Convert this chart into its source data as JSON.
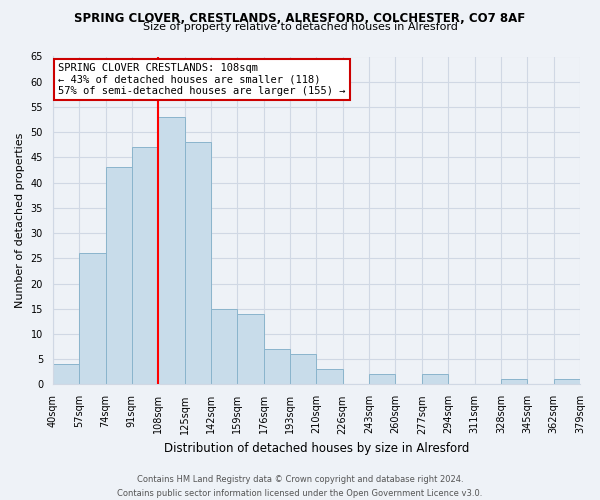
{
  "title": "SPRING CLOVER, CRESTLANDS, ALRESFORD, COLCHESTER, CO7 8AF",
  "subtitle": "Size of property relative to detached houses in Alresford",
  "xlabel": "Distribution of detached houses by size in Alresford",
  "ylabel": "Number of detached properties",
  "bin_labels": [
    "40sqm",
    "57sqm",
    "74sqm",
    "91sqm",
    "108sqm",
    "125sqm",
    "142sqm",
    "159sqm",
    "176sqm",
    "193sqm",
    "210sqm",
    "226sqm",
    "243sqm",
    "260sqm",
    "277sqm",
    "294sqm",
    "311sqm",
    "328sqm",
    "345sqm",
    "362sqm",
    "379sqm"
  ],
  "bar_heights": [
    4,
    26,
    43,
    47,
    53,
    48,
    15,
    14,
    7,
    6,
    3,
    0,
    2,
    0,
    2,
    0,
    0,
    1,
    0,
    1
  ],
  "bar_color": "#c8dcea",
  "bar_edge_color": "#8ab4cc",
  "red_line_x": 4,
  "ylim": [
    0,
    65
  ],
  "yticks": [
    0,
    5,
    10,
    15,
    20,
    25,
    30,
    35,
    40,
    45,
    50,
    55,
    60,
    65
  ],
  "annotation_title": "SPRING CLOVER CRESTLANDS: 108sqm",
  "annotation_line1": "← 43% of detached houses are smaller (118)",
  "annotation_line2": "57% of semi-detached houses are larger (155) →",
  "annotation_box_facecolor": "#ffffff",
  "annotation_box_edgecolor": "#cc0000",
  "footer_line1": "Contains HM Land Registry data © Crown copyright and database right 2024.",
  "footer_line2": "Contains public sector information licensed under the Open Government Licence v3.0.",
  "background_color": "#eef2f7",
  "grid_color": "#d0d8e4",
  "title_fontsize": 8.5,
  "subtitle_fontsize": 8,
  "ylabel_fontsize": 8,
  "xlabel_fontsize": 8.5,
  "tick_fontsize": 7,
  "ann_fontsize": 7.5,
  "footer_fontsize": 6
}
